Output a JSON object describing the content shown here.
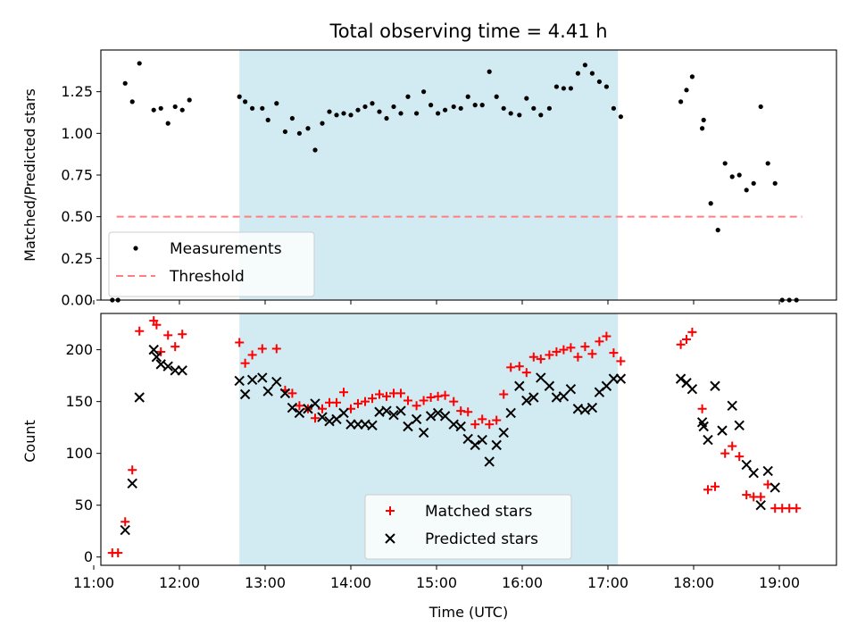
{
  "chart_data": [
    {
      "type": "scatter",
      "title": "Total observing time = 4.41 h",
      "xlabel": "",
      "ylabel": "Matched/Predicted stars",
      "xlim": [
        "11:05",
        "19:40"
      ],
      "ylim": [
        0,
        1.5
      ],
      "x_tick_labels": [
        "11:00",
        "12:00",
        "13:00",
        "14:00",
        "15:00",
        "16:00",
        "17:00",
        "18:00",
        "19:00"
      ],
      "y_tick_labels": [
        "0.00",
        "0.25",
        "0.50",
        "0.75",
        "1.00",
        "1.25"
      ],
      "y_ticks": [
        0,
        0.25,
        0.5,
        0.75,
        1.0,
        1.25
      ],
      "shaded_interval": [
        "12:42",
        "17:07"
      ],
      "shade_color": "#add8e6",
      "legend_position": "lower left",
      "series": [
        {
          "name": "Measurements",
          "marker": "dot",
          "color": "#000000",
          "points": [
            [
              "11:13",
              0.0
            ],
            [
              "11:17",
              0.0
            ],
            [
              "11:22",
              1.3
            ],
            [
              "11:27",
              1.19
            ],
            [
              "11:32",
              1.42
            ],
            [
              "11:42",
              1.14
            ],
            [
              "11:47",
              1.15
            ],
            [
              "11:52",
              1.06
            ],
            [
              "11:57",
              1.16
            ],
            [
              "12:02",
              1.14
            ],
            [
              "12:07",
              1.2
            ],
            [
              "12:42",
              1.22
            ],
            [
              "12:46",
              1.19
            ],
            [
              "12:51",
              1.15
            ],
            [
              "12:58",
              1.15
            ],
            [
              "13:02",
              1.08
            ],
            [
              "13:08",
              1.18
            ],
            [
              "13:14",
              1.01
            ],
            [
              "13:19",
              1.09
            ],
            [
              "13:24",
              1.0
            ],
            [
              "13:30",
              1.03
            ],
            [
              "13:35",
              0.9
            ],
            [
              "13:40",
              1.06
            ],
            [
              "13:45",
              1.13
            ],
            [
              "13:50",
              1.11
            ],
            [
              "13:55",
              1.12
            ],
            [
              "14:00",
              1.11
            ],
            [
              "14:05",
              1.14
            ],
            [
              "14:10",
              1.16
            ],
            [
              "14:15",
              1.18
            ],
            [
              "14:20",
              1.13
            ],
            [
              "14:25",
              1.09
            ],
            [
              "14:30",
              1.16
            ],
            [
              "14:35",
              1.12
            ],
            [
              "14:40",
              1.22
            ],
            [
              "14:46",
              1.12
            ],
            [
              "14:51",
              1.25
            ],
            [
              "14:56",
              1.17
            ],
            [
              "15:01",
              1.12
            ],
            [
              "15:06",
              1.14
            ],
            [
              "15:12",
              1.16
            ],
            [
              "15:17",
              1.15
            ],
            [
              "15:22",
              1.22
            ],
            [
              "15:27",
              1.17
            ],
            [
              "15:32",
              1.17
            ],
            [
              "15:37",
              1.37
            ],
            [
              "15:42",
              1.22
            ],
            [
              "15:47",
              1.15
            ],
            [
              "15:52",
              1.12
            ],
            [
              "15:58",
              1.11
            ],
            [
              "16:03",
              1.21
            ],
            [
              "16:08",
              1.15
            ],
            [
              "16:13",
              1.11
            ],
            [
              "16:19",
              1.15
            ],
            [
              "16:24",
              1.28
            ],
            [
              "16:29",
              1.27
            ],
            [
              "16:34",
              1.27
            ],
            [
              "16:39",
              1.36
            ],
            [
              "16:44",
              1.41
            ],
            [
              "16:49",
              1.36
            ],
            [
              "16:54",
              1.31
            ],
            [
              "16:59",
              1.28
            ],
            [
              "17:04",
              1.15
            ],
            [
              "17:09",
              1.1
            ],
            [
              "17:51",
              1.19
            ],
            [
              "17:55",
              1.26
            ],
            [
              "17:59",
              1.34
            ],
            [
              "18:06",
              1.03
            ],
            [
              "18:07",
              1.08
            ],
            [
              "18:12",
              0.58
            ],
            [
              "18:17",
              0.42
            ],
            [
              "18:22",
              0.82
            ],
            [
              "18:27",
              0.74
            ],
            [
              "18:32",
              0.75
            ],
            [
              "18:37",
              0.66
            ],
            [
              "18:42",
              0.7
            ],
            [
              "18:47",
              1.16
            ],
            [
              "18:52",
              0.82
            ],
            [
              "18:57",
              0.7
            ],
            [
              "19:02",
              0.0
            ],
            [
              "19:07",
              0.0
            ],
            [
              "19:12",
              0.0
            ]
          ]
        },
        {
          "name": "Threshold",
          "marker": "dashed-line",
          "color": "#ff7f7f",
          "points": [
            [
              "11:16",
              0.5
            ],
            [
              "19:16",
              0.5
            ]
          ]
        }
      ]
    },
    {
      "type": "scatter",
      "title": "",
      "xlabel": "Time (UTC)",
      "ylabel": "Count",
      "xlim": [
        "11:05",
        "19:40"
      ],
      "ylim": [
        -8,
        235
      ],
      "x_tick_labels": [
        "11:00",
        "12:00",
        "13:00",
        "14:00",
        "15:00",
        "16:00",
        "17:00",
        "18:00",
        "19:00"
      ],
      "y_tick_labels": [
        "0",
        "50",
        "100",
        "150",
        "200"
      ],
      "y_ticks": [
        0,
        50,
        100,
        150,
        200
      ],
      "shaded_interval": [
        "12:42",
        "17:07"
      ],
      "shade_color": "#add8e6",
      "legend_position": "lower center",
      "series": [
        {
          "name": "Matched stars",
          "marker": "plus",
          "color": "#ff0000",
          "points": [
            [
              "11:13",
              4
            ],
            [
              "11:17",
              4
            ],
            [
              "11:22",
              34
            ],
            [
              "11:27",
              84
            ],
            [
              "11:32",
              218
            ],
            [
              "11:42",
              228
            ],
            [
              "11:44",
              224
            ],
            [
              "11:47",
              198
            ],
            [
              "11:52",
              214
            ],
            [
              "11:57",
              203
            ],
            [
              "12:02",
              215
            ],
            [
              "12:42",
              207
            ],
            [
              "12:46",
              187
            ],
            [
              "12:51",
              195
            ],
            [
              "12:58",
              201
            ],
            [
              "13:08",
              201
            ],
            [
              "13:14",
              161
            ],
            [
              "13:19",
              158
            ],
            [
              "13:24",
              146
            ],
            [
              "13:30",
              143
            ],
            [
              "13:35",
              134
            ],
            [
              "13:40",
              143
            ],
            [
              "13:45",
              149
            ],
            [
              "13:50",
              149
            ],
            [
              "13:55",
              159
            ],
            [
              "14:00",
              143
            ],
            [
              "14:05",
              148
            ],
            [
              "14:10",
              150
            ],
            [
              "14:15",
              153
            ],
            [
              "14:20",
              157
            ],
            [
              "14:25",
              155
            ],
            [
              "14:30",
              158
            ],
            [
              "14:35",
              158
            ],
            [
              "14:40",
              151
            ],
            [
              "14:46",
              146
            ],
            [
              "14:51",
              151
            ],
            [
              "14:56",
              154
            ],
            [
              "15:01",
              155
            ],
            [
              "15:06",
              156
            ],
            [
              "15:12",
              150
            ],
            [
              "15:17",
              141
            ],
            [
              "15:22",
              140
            ],
            [
              "15:27",
              128
            ],
            [
              "15:32",
              133
            ],
            [
              "15:37",
              128
            ],
            [
              "15:42",
              132
            ],
            [
              "15:47",
              157
            ],
            [
              "15:52",
              183
            ],
            [
              "15:58",
              184
            ],
            [
              "16:03",
              178
            ],
            [
              "16:08",
              193
            ],
            [
              "16:13",
              191
            ],
            [
              "16:19",
              195
            ],
            [
              "16:24",
              198
            ],
            [
              "16:29",
              200
            ],
            [
              "16:34",
              202
            ],
            [
              "16:39",
              193
            ],
            [
              "16:44",
              203
            ],
            [
              "16:49",
              196
            ],
            [
              "16:54",
              208
            ],
            [
              "16:59",
              213
            ],
            [
              "17:04",
              197
            ],
            [
              "17:09",
              189
            ],
            [
              "17:51",
              205
            ],
            [
              "17:55",
              210
            ],
            [
              "17:59",
              217
            ],
            [
              "18:06",
              143
            ],
            [
              "18:10",
              65
            ],
            [
              "18:15",
              68
            ],
            [
              "18:22",
              100
            ],
            [
              "18:27",
              107
            ],
            [
              "18:32",
              97
            ],
            [
              "18:37",
              60
            ],
            [
              "18:42",
              58
            ],
            [
              "18:47",
              58
            ],
            [
              "18:52",
              70
            ],
            [
              "18:57",
              47
            ],
            [
              "19:02",
              47
            ],
            [
              "19:07",
              47
            ],
            [
              "19:12",
              47
            ]
          ]
        },
        {
          "name": "Predicted stars",
          "marker": "x",
          "color": "#000000",
          "points": [
            [
              "11:22",
              26
            ],
            [
              "11:27",
              71
            ],
            [
              "11:32",
              154
            ],
            [
              "11:42",
              200
            ],
            [
              "11:44",
              193
            ],
            [
              "11:47",
              186
            ],
            [
              "11:52",
              184
            ],
            [
              "11:57",
              180
            ],
            [
              "12:02",
              180
            ],
            [
              "12:42",
              170
            ],
            [
              "12:46",
              157
            ],
            [
              "12:51",
              171
            ],
            [
              "12:58",
              173
            ],
            [
              "13:02",
              160
            ],
            [
              "13:08",
              169
            ],
            [
              "13:14",
              158
            ],
            [
              "13:19",
              144
            ],
            [
              "13:24",
              139
            ],
            [
              "13:30",
              143
            ],
            [
              "13:35",
              148
            ],
            [
              "13:40",
              135
            ],
            [
              "13:45",
              131
            ],
            [
              "13:50",
              133
            ],
            [
              "13:55",
              139
            ],
            [
              "14:00",
              128
            ],
            [
              "14:05",
              128
            ],
            [
              "14:10",
              128
            ],
            [
              "14:15",
              127
            ],
            [
              "14:20",
              140
            ],
            [
              "14:25",
              141
            ],
            [
              "14:30",
              137
            ],
            [
              "14:35",
              141
            ],
            [
              "14:40",
              126
            ],
            [
              "14:46",
              133
            ],
            [
              "14:51",
              120
            ],
            [
              "14:56",
              136
            ],
            [
              "15:01",
              139
            ],
            [
              "15:06",
              136
            ],
            [
              "15:12",
              128
            ],
            [
              "15:17",
              126
            ],
            [
              "15:22",
              114
            ],
            [
              "15:27",
              108
            ],
            [
              "15:32",
              113
            ],
            [
              "15:37",
              92
            ],
            [
              "15:42",
              108
            ],
            [
              "15:47",
              120
            ],
            [
              "15:52",
              139
            ],
            [
              "15:58",
              165
            ],
            [
              "16:03",
              151
            ],
            [
              "16:08",
              154
            ],
            [
              "16:13",
              173
            ],
            [
              "16:19",
              165
            ],
            [
              "16:24",
              154
            ],
            [
              "16:29",
              155
            ],
            [
              "16:34",
              162
            ],
            [
              "16:39",
              143
            ],
            [
              "16:44",
              142
            ],
            [
              "16:49",
              144
            ],
            [
              "16:54",
              159
            ],
            [
              "16:59",
              165
            ],
            [
              "17:04",
              172
            ],
            [
              "17:09",
              172
            ],
            [
              "17:51",
              172
            ],
            [
              "17:55",
              168
            ],
            [
              "17:59",
              162
            ],
            [
              "18:06",
              130
            ],
            [
              "18:07",
              126
            ],
            [
              "18:10",
              113
            ],
            [
              "18:15",
              165
            ],
            [
              "18:20",
              122
            ],
            [
              "18:27",
              146
            ],
            [
              "18:32",
              127
            ],
            [
              "18:37",
              89
            ],
            [
              "18:42",
              81
            ],
            [
              "18:47",
              50
            ],
            [
              "18:52",
              83
            ],
            [
              "18:57",
              67
            ]
          ]
        }
      ]
    }
  ]
}
